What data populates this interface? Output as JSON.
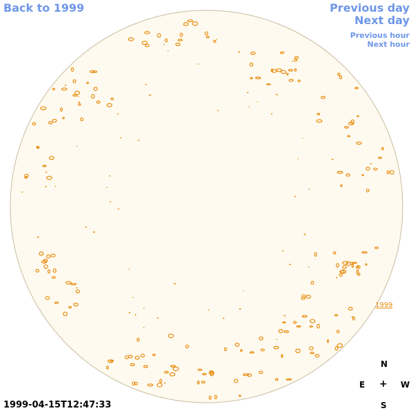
{
  "nav": {
    "back": "Back to 1999",
    "previous_day": "Previous day",
    "next_day": "Next day",
    "previous_hour": "Previous hour",
    "next_hour": "Next hour"
  },
  "timestamp": "1999-04-15T12:47:33",
  "compass": {
    "north": "N",
    "east": "E",
    "west": "W",
    "south": "S",
    "center": "+"
  },
  "active_region_label": "1999",
  "colors": {
    "disk_fill": "#fefaef",
    "disk_stroke": "#c9bba0",
    "contour": "#e88a0a",
    "link": "#6f97e8"
  }
}
